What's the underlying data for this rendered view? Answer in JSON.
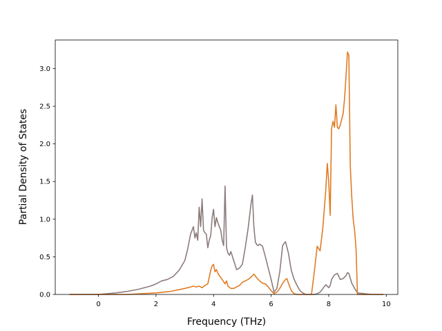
{
  "chart_data": {
    "type": "line",
    "xlabel": "Frequency (THz)",
    "ylabel": "Partial Density of States",
    "xlim": [
      -1.5,
      10.4
    ],
    "ylim": [
      0,
      3.38
    ],
    "xticks": [
      0,
      2,
      4,
      6,
      8,
      10
    ],
    "yticks": [
      0.0,
      0.5,
      1.0,
      1.5,
      2.0,
      2.5,
      3.0
    ],
    "xtick_labels": [
      "0",
      "2",
      "4",
      "6",
      "8",
      "10"
    ],
    "ytick_labels": [
      "0.0",
      "0.5",
      "1.0",
      "1.5",
      "2.0",
      "2.5",
      "3.0"
    ],
    "grid": false,
    "legend": "none",
    "series": [
      {
        "color": "#8c7b7b",
        "x": [
          -1.0,
          -0.5,
          0.0,
          0.3,
          0.6,
          1.0,
          1.4,
          1.8,
          2.0,
          2.2,
          2.4,
          2.6,
          2.8,
          3.0,
          3.1,
          3.2,
          3.3,
          3.35,
          3.4,
          3.45,
          3.5,
          3.55,
          3.6,
          3.65,
          3.7,
          3.75,
          3.8,
          3.85,
          3.9,
          3.95,
          4.0,
          4.05,
          4.1,
          4.15,
          4.2,
          4.25,
          4.3,
          4.35,
          4.4,
          4.45,
          4.5,
          4.55,
          4.6,
          4.7,
          4.8,
          4.9,
          5.0,
          5.1,
          5.2,
          5.3,
          5.35,
          5.4,
          5.45,
          5.5,
          5.55,
          5.6,
          5.7,
          5.8,
          5.9,
          6.0,
          6.1,
          6.2,
          6.3,
          6.4,
          6.45,
          6.5,
          6.6,
          6.7,
          6.8,
          6.9,
          7.0,
          7.1,
          7.2,
          7.3,
          7.4,
          7.5,
          7.6,
          7.7,
          7.8,
          7.9,
          8.0,
          8.05,
          8.1,
          8.2,
          8.3,
          8.4,
          8.5,
          8.6,
          8.65,
          8.7,
          8.8,
          8.9,
          9.0,
          9.5,
          9.9
        ],
        "y": [
          0.0,
          0.0,
          0.0,
          0.01,
          0.02,
          0.04,
          0.07,
          0.11,
          0.14,
          0.18,
          0.2,
          0.24,
          0.32,
          0.45,
          0.6,
          0.8,
          0.9,
          0.75,
          0.82,
          0.72,
          1.16,
          0.9,
          1.27,
          0.85,
          0.82,
          0.8,
          0.62,
          0.72,
          0.78,
          1.02,
          1.13,
          0.9,
          1.02,
          0.95,
          0.9,
          0.85,
          0.72,
          0.65,
          1.44,
          0.62,
          0.55,
          0.52,
          0.57,
          0.45,
          0.33,
          0.35,
          0.4,
          0.62,
          0.88,
          1.2,
          1.32,
          0.9,
          0.7,
          0.66,
          0.65,
          0.67,
          0.64,
          0.5,
          0.35,
          0.2,
          0.03,
          0.08,
          0.3,
          0.65,
          0.68,
          0.7,
          0.55,
          0.32,
          0.2,
          0.12,
          0.05,
          0.02,
          0.0,
          0.0,
          0.0,
          0.0,
          0.01,
          0.03,
          0.08,
          0.13,
          0.09,
          0.12,
          0.2,
          0.26,
          0.28,
          0.2,
          0.21,
          0.25,
          0.29,
          0.28,
          0.15,
          0.08,
          0.02,
          0.0,
          0.0
        ]
      },
      {
        "color": "#e07b22",
        "x": [
          -1.0,
          -0.5,
          0.0,
          0.5,
          1.0,
          1.5,
          2.0,
          2.5,
          3.0,
          3.2,
          3.3,
          3.4,
          3.5,
          3.55,
          3.6,
          3.7,
          3.8,
          3.9,
          3.95,
          4.0,
          4.05,
          4.1,
          4.15,
          4.2,
          4.3,
          4.4,
          4.45,
          4.5,
          4.6,
          4.7,
          4.8,
          4.9,
          5.0,
          5.1,
          5.2,
          5.3,
          5.4,
          5.5,
          5.6,
          5.7,
          5.8,
          5.9,
          6.0,
          6.1,
          6.2,
          6.3,
          6.4,
          6.5,
          6.55,
          6.6,
          6.7,
          6.8,
          6.9,
          7.0,
          7.1,
          7.2,
          7.3,
          7.4,
          7.5,
          7.6,
          7.7,
          7.8,
          7.9,
          7.95,
          8.0,
          8.05,
          8.1,
          8.15,
          8.2,
          8.25,
          8.3,
          8.35,
          8.4,
          8.5,
          8.55,
          8.6,
          8.65,
          8.7,
          8.75,
          8.8,
          8.85,
          8.9,
          8.95,
          9.0,
          9.5,
          9.9
        ],
        "y": [
          0.0,
          0.0,
          0.0,
          0.0,
          0.0,
          0.01,
          0.02,
          0.04,
          0.08,
          0.1,
          0.11,
          0.1,
          0.11,
          0.1,
          0.09,
          0.12,
          0.14,
          0.32,
          0.38,
          0.4,
          0.3,
          0.33,
          0.28,
          0.25,
          0.2,
          0.14,
          0.18,
          0.11,
          0.08,
          0.08,
          0.1,
          0.12,
          0.16,
          0.18,
          0.2,
          0.23,
          0.27,
          0.22,
          0.18,
          0.15,
          0.14,
          0.1,
          0.05,
          0.01,
          0.03,
          0.08,
          0.15,
          0.2,
          0.21,
          0.15,
          0.05,
          0.01,
          0.0,
          0.0,
          0.0,
          0.0,
          0.0,
          0.0,
          0.3,
          0.64,
          0.58,
          0.9,
          1.4,
          1.74,
          1.5,
          1.05,
          2.2,
          2.3,
          2.22,
          2.52,
          2.22,
          2.2,
          2.25,
          2.4,
          2.6,
          2.9,
          3.22,
          3.18,
          1.7,
          1.3,
          1.0,
          0.85,
          0.6,
          0.0,
          0.0,
          0.0
        ]
      }
    ]
  }
}
